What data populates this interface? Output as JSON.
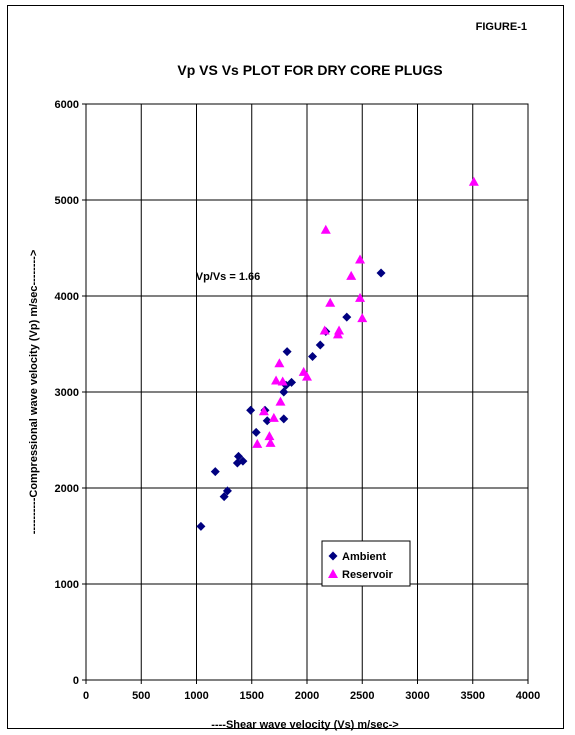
{
  "figure_label": "FIGURE-1",
  "chart_data": {
    "type": "scatter",
    "title": "Vp VS Vs PLOT FOR DRY CORE PLUGS",
    "xlabel": "----Shear wave velocity (Vs) m/sec->",
    "ylabel": "----------Compressional wave velocity (Vp) m/sec-------->",
    "xlim": [
      0,
      4000
    ],
    "ylim": [
      0,
      6000
    ],
    "xticks": [
      0,
      500,
      1000,
      1500,
      2000,
      2500,
      3000,
      3500,
      4000
    ],
    "yticks": [
      0,
      1000,
      2000,
      3000,
      4000,
      5000,
      6000
    ],
    "grid": true,
    "legend_position": "lower-right",
    "annotation": "Vp/Vs = 1.66",
    "series": [
      {
        "name": "Ambient",
        "marker": "diamond",
        "color": "#000080",
        "points": [
          [
            1040,
            1600
          ],
          [
            1170,
            2170
          ],
          [
            1250,
            1910
          ],
          [
            1280,
            1970
          ],
          [
            1370,
            2260
          ],
          [
            1380,
            2330
          ],
          [
            1420,
            2280
          ],
          [
            1490,
            2810
          ],
          [
            1540,
            2580
          ],
          [
            1620,
            2810
          ],
          [
            1640,
            2700
          ],
          [
            1790,
            2720
          ],
          [
            1790,
            3000
          ],
          [
            1810,
            3070
          ],
          [
            1820,
            3420
          ],
          [
            1860,
            3100
          ],
          [
            2050,
            3370
          ],
          [
            2120,
            3490
          ],
          [
            2170,
            3630
          ],
          [
            2360,
            3780
          ],
          [
            2670,
            4240
          ]
        ]
      },
      {
        "name": "Reservoir",
        "marker": "triangle",
        "color": "#ff00ff",
        "points": [
          [
            1550,
            2460
          ],
          [
            1610,
            2800
          ],
          [
            1660,
            2540
          ],
          [
            1670,
            2470
          ],
          [
            1700,
            2730
          ],
          [
            1720,
            3120
          ],
          [
            1750,
            3300
          ],
          [
            1760,
            2900
          ],
          [
            1780,
            3110
          ],
          [
            1970,
            3210
          ],
          [
            2000,
            3160
          ],
          [
            2160,
            3640
          ],
          [
            2170,
            4690
          ],
          [
            2210,
            3930
          ],
          [
            2280,
            3600
          ],
          [
            2290,
            3640
          ],
          [
            2400,
            4210
          ],
          [
            2480,
            4380
          ],
          [
            2480,
            3980
          ],
          [
            2500,
            3770
          ],
          [
            3510,
            5190
          ]
        ]
      }
    ]
  }
}
